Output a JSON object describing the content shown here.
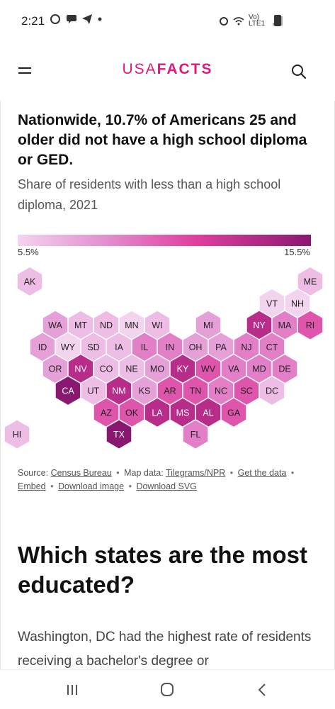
{
  "status": {
    "time": "2:21",
    "network": "Vo) LTE1"
  },
  "header": {
    "logo_light": "USA",
    "logo_bold": "FACTS"
  },
  "card": {
    "title": "Nationwide, 10.7% of Americans 25 and older did not have a high school diploma or GED.",
    "subtitle": "Share of residents with less than a high school diploma, 2021",
    "legend": {
      "min_label": "5.5%",
      "max_label": "15.5%",
      "min_color": "#f3d4ee",
      "max_color": "#8a1870"
    }
  },
  "hexmap": {
    "states": [
      {
        "abbr": "AK",
        "row": 0,
        "col": 0,
        "level": 1
      },
      {
        "abbr": "ME",
        "row": 0,
        "col": 11,
        "level": 1
      },
      {
        "abbr": "VT",
        "row": 1,
        "col": 10,
        "level": 0
      },
      {
        "abbr": "NH",
        "row": 1,
        "col": 11,
        "level": 0
      },
      {
        "abbr": "WA",
        "row": 2,
        "col": 1,
        "level": 2
      },
      {
        "abbr": "MT",
        "row": 2,
        "col": 2,
        "level": 1
      },
      {
        "abbr": "ND",
        "row": 2,
        "col": 3,
        "level": 1
      },
      {
        "abbr": "MN",
        "row": 2,
        "col": 4,
        "level": 0
      },
      {
        "abbr": "WI",
        "row": 2,
        "col": 5,
        "level": 1
      },
      {
        "abbr": "MI",
        "row": 2,
        "col": 7,
        "level": 2
      },
      {
        "abbr": "NY",
        "row": 2,
        "col": 9,
        "level": 5
      },
      {
        "abbr": "MA",
        "row": 2,
        "col": 10,
        "level": 3
      },
      {
        "abbr": "RI",
        "row": 2,
        "col": 11,
        "level": 4
      },
      {
        "abbr": "ID",
        "row": 3,
        "col": 1,
        "level": 2
      },
      {
        "abbr": "WY",
        "row": 3,
        "col": 2,
        "level": 0
      },
      {
        "abbr": "SD",
        "row": 3,
        "col": 3,
        "level": 1
      },
      {
        "abbr": "IA",
        "row": 3,
        "col": 4,
        "level": 1
      },
      {
        "abbr": "IL",
        "row": 3,
        "col": 5,
        "level": 3
      },
      {
        "abbr": "IN",
        "row": 3,
        "col": 6,
        "level": 3
      },
      {
        "abbr": "OH",
        "row": 3,
        "col": 7,
        "level": 2
      },
      {
        "abbr": "PA",
        "row": 3,
        "col": 8,
        "level": 2
      },
      {
        "abbr": "NJ",
        "row": 3,
        "col": 9,
        "level": 3
      },
      {
        "abbr": "CT",
        "row": 3,
        "col": 10,
        "level": 3
      },
      {
        "abbr": "OR",
        "row": 4,
        "col": 1,
        "level": 2
      },
      {
        "abbr": "NV",
        "row": 4,
        "col": 2,
        "level": 5
      },
      {
        "abbr": "CO",
        "row": 4,
        "col": 3,
        "level": 1
      },
      {
        "abbr": "NE",
        "row": 4,
        "col": 4,
        "level": 1
      },
      {
        "abbr": "MO",
        "row": 4,
        "col": 5,
        "level": 2
      },
      {
        "abbr": "KY",
        "row": 4,
        "col": 6,
        "level": 5
      },
      {
        "abbr": "WV",
        "row": 4,
        "col": 7,
        "level": 4
      },
      {
        "abbr": "VA",
        "row": 4,
        "col": 8,
        "level": 3
      },
      {
        "abbr": "MD",
        "row": 4,
        "col": 9,
        "level": 3
      },
      {
        "abbr": "DE",
        "row": 4,
        "col": 10,
        "level": 3
      },
      {
        "abbr": "CA",
        "row": 5,
        "col": 2,
        "level": 6
      },
      {
        "abbr": "UT",
        "row": 5,
        "col": 3,
        "level": 1
      },
      {
        "abbr": "NM",
        "row": 5,
        "col": 4,
        "level": 5
      },
      {
        "abbr": "KS",
        "row": 5,
        "col": 5,
        "level": 2
      },
      {
        "abbr": "AR",
        "row": 5,
        "col": 6,
        "level": 4
      },
      {
        "abbr": "TN",
        "row": 5,
        "col": 7,
        "level": 4
      },
      {
        "abbr": "NC",
        "row": 5,
        "col": 8,
        "level": 3
      },
      {
        "abbr": "SC",
        "row": 5,
        "col": 9,
        "level": 4
      },
      {
        "abbr": "DC",
        "row": 5,
        "col": 10,
        "level": 1
      },
      {
        "abbr": "AZ",
        "row": 6,
        "col": 3,
        "level": 4
      },
      {
        "abbr": "OK",
        "row": 6,
        "col": 4,
        "level": 4
      },
      {
        "abbr": "LA",
        "row": 6,
        "col": 5,
        "level": 5
      },
      {
        "abbr": "MS",
        "row": 6,
        "col": 6,
        "level": 5
      },
      {
        "abbr": "AL",
        "row": 6,
        "col": 7,
        "level": 5
      },
      {
        "abbr": "GA",
        "row": 6,
        "col": 8,
        "level": 4
      },
      {
        "abbr": "HI",
        "row": 7,
        "col": 0,
        "level": 1
      },
      {
        "abbr": "TX",
        "row": 7,
        "col": 4,
        "level": 6
      },
      {
        "abbr": "FL",
        "row": 7,
        "col": 7,
        "level": 3
      }
    ],
    "palette": [
      "#f3d4ee",
      "#eebde6",
      "#e6a0d8",
      "#e27fc7",
      "#df55ab",
      "#b82c8a",
      "#8a1870"
    ]
  },
  "source": {
    "label": "Source:",
    "census": "Census Bureau",
    "map_label": "Map data:",
    "tilegrams": "Tilegrams/NPR",
    "get_data": "Get the data",
    "embed": "Embed",
    "download_image": "Download image",
    "download_svg": "Download SVG"
  },
  "section": {
    "heading": "Which states are the most educated?",
    "body": "Washington, DC had the highest rate of residents receiving a bachelor's degree or"
  },
  "icons": {
    "menu": "hamburger-menu-icon",
    "search": "search-icon",
    "recents": "recent-apps-icon",
    "home": "home-icon",
    "back": "back-icon"
  }
}
